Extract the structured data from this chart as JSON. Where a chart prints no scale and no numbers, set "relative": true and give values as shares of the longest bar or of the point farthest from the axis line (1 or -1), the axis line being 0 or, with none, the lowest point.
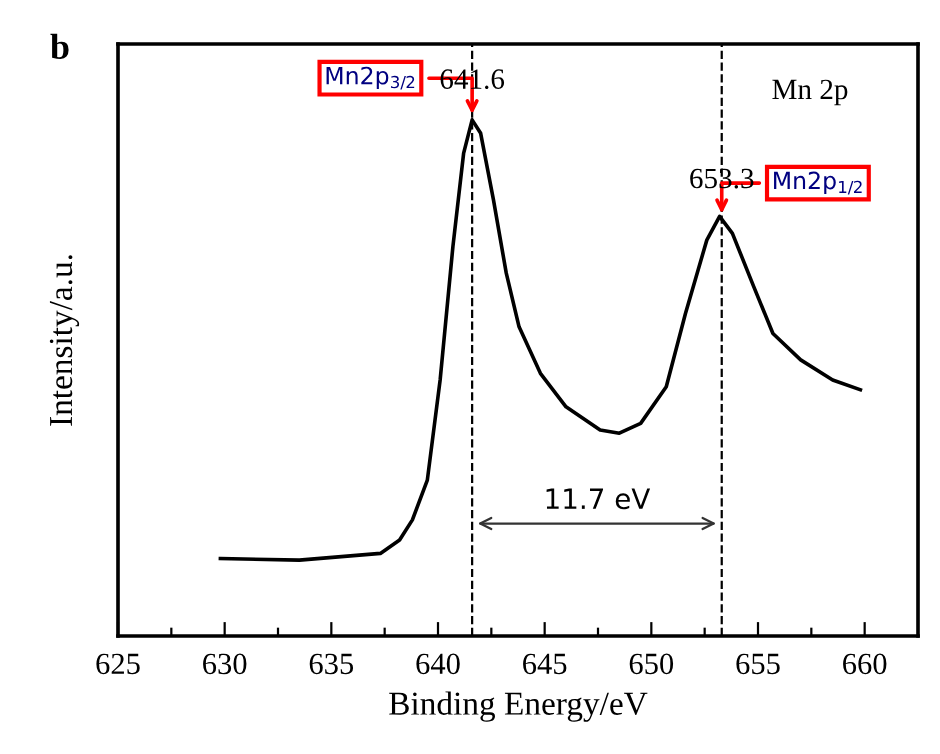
{
  "chart_data": {
    "type": "line",
    "relative": true,
    "xlabel": "Binding Energy/eV",
    "ylabel": "Intensity/a.u.",
    "xlim": [
      625,
      662.5
    ],
    "xticks": [
      625,
      {
        "value": 627.5,
        "label": null
      },
      630,
      {
        "value": 632.5,
        "label": null
      },
      635,
      {
        "value": 637.5,
        "label": null
      },
      640,
      {
        "value": 642.5,
        "label": null
      },
      645,
      {
        "value": 647.5,
        "label": null
      },
      650,
      {
        "value": 652.5,
        "label": null
      },
      655,
      {
        "value": 657.5,
        "label": null
      },
      660
    ],
    "tick_labels": "x",
    "grid": false,
    "marker": "none",
    "line_style": "solid",
    "series": [
      {
        "color": "#000000",
        "x": [
          629.8,
          633.5,
          637.3,
          638.2,
          638.8,
          639.5,
          640.1,
          640.7,
          641.2,
          641.6,
          642.0,
          642.6,
          643.2,
          643.8,
          644.8,
          646.0,
          647.6,
          648.5,
          649.5,
          650.7,
          651.6,
          652.6,
          653.2,
          653.8,
          654.8,
          655.7,
          657.0,
          658.5,
          659.8
        ],
        "values": [
          0.15,
          0.147,
          0.16,
          0.186,
          0.225,
          0.302,
          0.496,
          0.755,
          0.935,
          1.0,
          0.974,
          0.845,
          0.703,
          0.599,
          0.509,
          0.444,
          0.399,
          0.393,
          0.412,
          0.483,
          0.625,
          0.767,
          0.813,
          0.78,
          0.677,
          0.586,
          0.535,
          0.496,
          0.477
        ]
      }
    ],
    "ref_lines": [
      {
        "axis": "x",
        "value": 641.6,
        "line_style": "dashed",
        "color": "#000000"
      },
      {
        "axis": "x",
        "value": 653.3,
        "line_style": "dashed",
        "color": "#000000"
      }
    ],
    "annotations": [
      "641.6",
      "653.3",
      "Mn2p$_{3/2}$",
      "Mn2p$_{1/2}$",
      "Mn 2p",
      "11.7 eV",
      "b"
    ]
  }
}
